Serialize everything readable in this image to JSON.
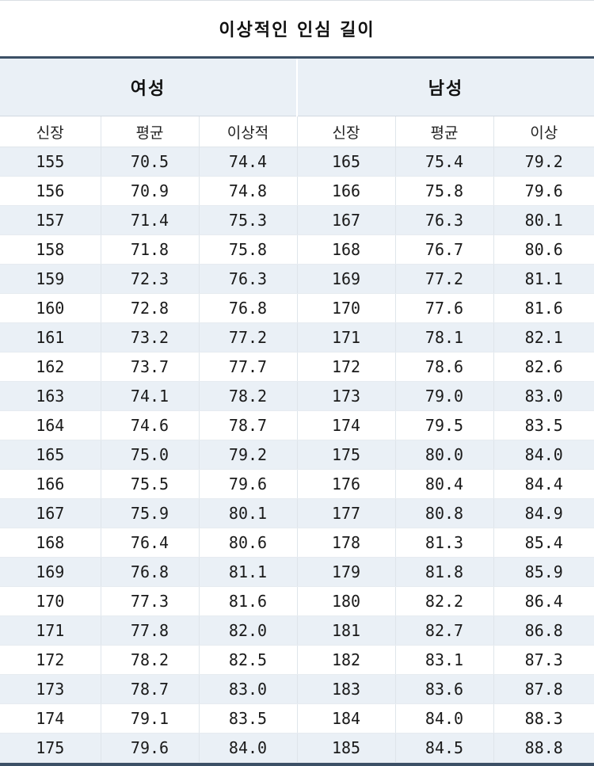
{
  "title": "이상적인 인심 길이",
  "groups": {
    "women": "여성",
    "men": "남성"
  },
  "columns": {
    "women": [
      "신장",
      "평균",
      "이상적"
    ],
    "men": [
      "신장",
      "평균",
      "이상"
    ]
  },
  "colors": {
    "header_band": "#eaf0f6",
    "rule": "#3c5066"
  },
  "chart_data": {
    "type": "table",
    "title": "이상적인 인심 길이",
    "column_groups": [
      {
        "name": "여성",
        "columns": [
          "신장",
          "평균",
          "이상적"
        ]
      },
      {
        "name": "남성",
        "columns": [
          "신장",
          "평균",
          "이상"
        ]
      }
    ],
    "rows": [
      [
        "155",
        "70.5",
        "74.4",
        "165",
        "75.4",
        "79.2"
      ],
      [
        "156",
        "70.9",
        "74.8",
        "166",
        "75.8",
        "79.6"
      ],
      [
        "157",
        "71.4",
        "75.3",
        "167",
        "76.3",
        "80.1"
      ],
      [
        "158",
        "71.8",
        "75.8",
        "168",
        "76.7",
        "80.6"
      ],
      [
        "159",
        "72.3",
        "76.3",
        "169",
        "77.2",
        "81.1"
      ],
      [
        "160",
        "72.8",
        "76.8",
        "170",
        "77.6",
        "81.6"
      ],
      [
        "161",
        "73.2",
        "77.2",
        "171",
        "78.1",
        "82.1"
      ],
      [
        "162",
        "73.7",
        "77.7",
        "172",
        "78.6",
        "82.6"
      ],
      [
        "163",
        "74.1",
        "78.2",
        "173",
        "79.0",
        "83.0"
      ],
      [
        "164",
        "74.6",
        "78.7",
        "174",
        "79.5",
        "83.5"
      ],
      [
        "165",
        "75.0",
        "79.2",
        "175",
        "80.0",
        "84.0"
      ],
      [
        "166",
        "75.5",
        "79.6",
        "176",
        "80.4",
        "84.4"
      ],
      [
        "167",
        "75.9",
        "80.1",
        "177",
        "80.8",
        "84.9"
      ],
      [
        "168",
        "76.4",
        "80.6",
        "178",
        "81.3",
        "85.4"
      ],
      [
        "169",
        "76.8",
        "81.1",
        "179",
        "81.8",
        "85.9"
      ],
      [
        "170",
        "77.3",
        "81.6",
        "180",
        "82.2",
        "86.4"
      ],
      [
        "171",
        "77.8",
        "82.0",
        "181",
        "82.7",
        "86.8"
      ],
      [
        "172",
        "78.2",
        "82.5",
        "182",
        "83.1",
        "87.3"
      ],
      [
        "173",
        "78.7",
        "83.0",
        "183",
        "83.6",
        "87.8"
      ],
      [
        "174",
        "79.1",
        "83.5",
        "184",
        "84.0",
        "88.3"
      ],
      [
        "175",
        "79.6",
        "84.0",
        "185",
        "84.5",
        "88.8"
      ]
    ]
  }
}
